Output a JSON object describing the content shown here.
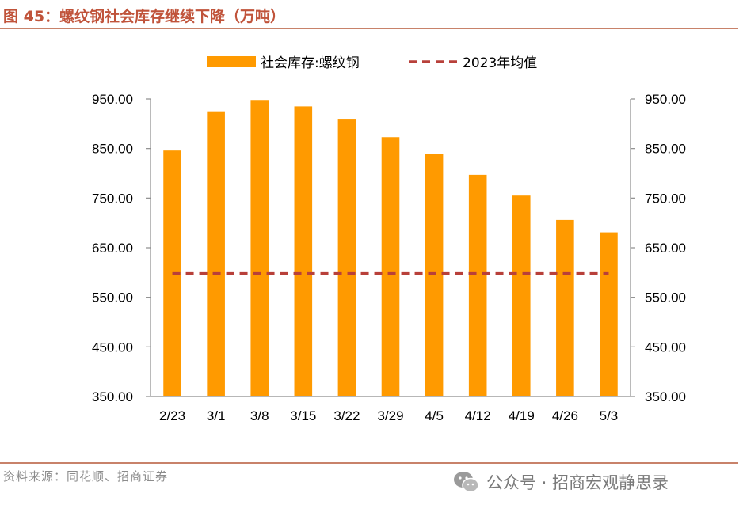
{
  "figure": {
    "title": "图 45：螺纹钢社会库存继续下降（万吨）",
    "source": "资料来源：同花顺、招商证券",
    "watermark": "公众号 · 招商宏观静思录"
  },
  "colors": {
    "bar": "#FF9A00",
    "avg_line": "#B8403A",
    "axis": "#8C8C8C",
    "accent": "#C0533A"
  },
  "chart_data": {
    "type": "bar",
    "categories": [
      "2/23",
      "3/1",
      "3/8",
      "3/15",
      "3/22",
      "3/29",
      "4/5",
      "4/12",
      "4/19",
      "4/26",
      "5/3"
    ],
    "series": [
      {
        "name": "社会库存:螺纹钢",
        "type": "bar",
        "values": [
          846,
          925,
          948,
          935,
          910,
          873,
          839,
          797,
          755,
          706,
          681
        ]
      },
      {
        "name": "2023年均值",
        "type": "line",
        "style": "dashed",
        "values": [
          598,
          598,
          598,
          598,
          598,
          598,
          598,
          598,
          598,
          598,
          598
        ]
      }
    ],
    "ylim": [
      350,
      950
    ],
    "yticks": [
      "350.00",
      "450.00",
      "550.00",
      "650.00",
      "750.00",
      "850.00",
      "950.00"
    ],
    "y2ticks": [
      "350.00",
      "450.00",
      "550.00",
      "650.00",
      "750.00",
      "850.00",
      "950.00"
    ],
    "legend": {
      "placement": "top-center",
      "items": [
        "社会库存:螺纹钢",
        "2023年均值"
      ]
    },
    "grid": false
  }
}
